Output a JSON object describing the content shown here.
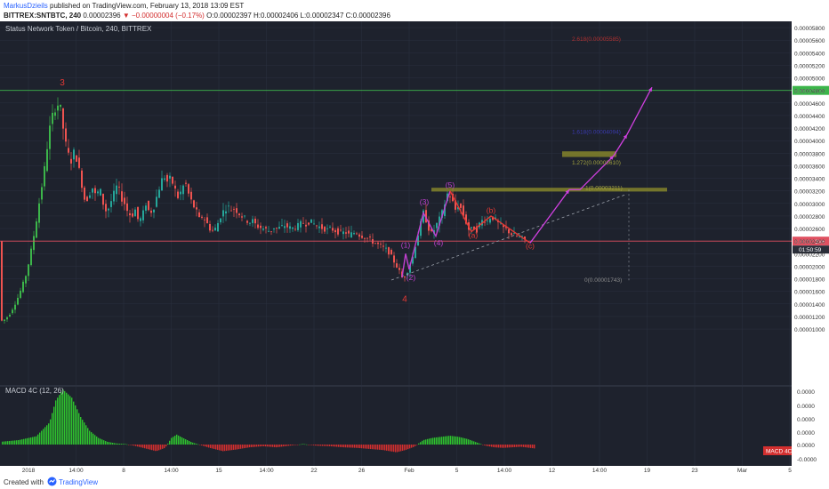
{
  "header": {
    "author": "MarkusDzieils",
    "published": "published on TradingView.com, February 13, 2018 13:09 EST",
    "symbol": "BITTREX:SNTBTC, 240",
    "price": "0.00002396",
    "change": "▼ −0.00000004 (−0.17%)",
    "ohlc": "O:0.00002397 H:0.00002406 L:0.00002347 C:0.00002396"
  },
  "footer": {
    "created": "Created with",
    "brand": "TradingView"
  },
  "colors": {
    "background": "#1e222d",
    "grid": "#2b3140",
    "up": "#26a69a",
    "down": "#ef5350",
    "up_bright": "#3cb54a",
    "wave": "#c040d0",
    "abc": "#e53935",
    "projection": "#d040e0",
    "zone": "#8a8a2a",
    "resistance_line": "#3cb54a",
    "price_line": "#e05060",
    "macd_up": "#2ec22e",
    "macd_down": "#d32f2f"
  },
  "chart_data": {
    "type": "candlestick",
    "title": "Status Network Token / Bitcoin, 240, BITTREX",
    "ylim": [
      9.5e-07,
      5.9e-05
    ],
    "y_ticks": [
      "0.00005800",
      "0.00005600",
      "0.00005400",
      "0.00005200",
      "0.00005000",
      "0.00004800",
      "0.00004600",
      "0.00004400",
      "0.00004200",
      "0.00004000",
      "0.00003800",
      "0.00003600",
      "0.00003400",
      "0.00003200",
      "0.00003000",
      "0.00002800",
      "0.00002600",
      "0.00002400",
      "0.00002200",
      "0.00002000",
      "0.00001800",
      "0.00001600",
      "0.00001400",
      "0.00001200",
      "0.00001000"
    ],
    "x_ticks": [
      "2018",
      "14:00",
      "8",
      "14:00",
      "15",
      "14:00",
      "22",
      "26",
      "Feb",
      "5",
      "14:00",
      "12",
      "14:00",
      "19",
      "23",
      "Mar",
      "5"
    ],
    "price_path": [
      [
        0,
        1.12e-05
      ],
      [
        5,
        1.15e-05
      ],
      [
        10,
        1.22e-05
      ],
      [
        15,
        1.35e-05
      ],
      [
        20,
        1.5e-05
      ],
      [
        25,
        1.68e-05
      ],
      [
        30,
        1.9e-05
      ],
      [
        35,
        2.25e-05
      ],
      [
        40,
        2.65e-05
      ],
      [
        45,
        3.1e-05
      ],
      [
        50,
        3.55e-05
      ],
      [
        53,
        3.9e-05
      ],
      [
        56,
        4.2e-05
      ],
      [
        60,
        4.45e-05
      ],
      [
        64,
        4.6e-05
      ],
      [
        68,
        4.5e-05
      ],
      [
        70,
        4.3e-05
      ],
      [
        73,
        4e-05
      ],
      [
        76,
        3.8e-05
      ],
      [
        80,
        3.68e-05
      ],
      [
        84,
        3.85e-05
      ],
      [
        88,
        3.6e-05
      ],
      [
        92,
        3.3e-05
      ],
      [
        96,
        3e-05
      ],
      [
        100,
        3.15e-05
      ],
      [
        104,
        3.25e-05
      ],
      [
        108,
        3.1e-05
      ],
      [
        112,
        3.25e-05
      ],
      [
        116,
        3e-05
      ],
      [
        120,
        2.85e-05
      ],
      [
        124,
        3e-05
      ],
      [
        128,
        3.15e-05
      ],
      [
        132,
        3.3e-05
      ],
      [
        136,
        3.1e-05
      ],
      [
        140,
        3e-05
      ],
      [
        144,
        2.85e-05
      ],
      [
        148,
        2.8e-05
      ],
      [
        152,
        2.9e-05
      ],
      [
        156,
        2.7e-05
      ],
      [
        160,
        2.8e-05
      ],
      [
        164,
        3e-05
      ],
      [
        168,
        2.85e-05
      ],
      [
        172,
        2.9e-05
      ],
      [
        176,
        3.1e-05
      ],
      [
        180,
        3.3e-05
      ],
      [
        184,
        3.45e-05
      ],
      [
        188,
        3.35e-05
      ],
      [
        192,
        3.4e-05
      ],
      [
        196,
        3.25e-05
      ],
      [
        200,
        3.1e-05
      ],
      [
        204,
        3.2e-05
      ],
      [
        208,
        3.35e-05
      ],
      [
        212,
        3.15e-05
      ],
      [
        216,
        3e-05
      ],
      [
        220,
        2.9e-05
      ],
      [
        224,
        2.75e-05
      ],
      [
        228,
        2.8e-05
      ],
      [
        232,
        2.7e-05
      ],
      [
        236,
        2.6e-05
      ],
      [
        240,
        2.55e-05
      ],
      [
        244,
        2.65e-05
      ],
      [
        248,
        2.8e-05
      ],
      [
        252,
        2.9e-05
      ],
      [
        256,
        2.95e-05
      ],
      [
        260,
        2.9e-05
      ],
      [
        264,
        2.92e-05
      ],
      [
        268,
        2.85e-05
      ],
      [
        272,
        2.8e-05
      ],
      [
        276,
        2.75e-05
      ],
      [
        280,
        2.7e-05
      ],
      [
        284,
        2.72e-05
      ],
      [
        288,
        2.65e-05
      ],
      [
        292,
        2.62e-05
      ],
      [
        296,
        2.6e-05
      ],
      [
        300,
        2.58e-05
      ],
      [
        304,
        2.55e-05
      ],
      [
        308,
        2.62e-05
      ],
      [
        312,
        2.6e-05
      ],
      [
        316,
        2.62e-05
      ],
      [
        320,
        2.65e-05
      ],
      [
        324,
        2.62e-05
      ],
      [
        328,
        2.6e-05
      ],
      [
        332,
        2.62e-05
      ],
      [
        336,
        2.65e-05
      ],
      [
        340,
        2.7e-05
      ],
      [
        344,
        2.68e-05
      ],
      [
        348,
        2.72e-05
      ],
      [
        352,
        2.68e-05
      ],
      [
        356,
        2.65e-05
      ],
      [
        360,
        2.62e-05
      ],
      [
        364,
        2.6e-05
      ],
      [
        368,
        2.58e-05
      ],
      [
        372,
        2.6e-05
      ],
      [
        376,
        2.57e-05
      ],
      [
        380,
        2.55e-05
      ],
      [
        384,
        2.52e-05
      ],
      [
        388,
        2.55e-05
      ],
      [
        392,
        2.5e-05
      ],
      [
        396,
        2.52e-05
      ],
      [
        400,
        2.55e-05
      ],
      [
        404,
        2.5e-05
      ],
      [
        408,
        2.48e-05
      ],
      [
        412,
        2.45e-05
      ],
      [
        416,
        2.42e-05
      ],
      [
        420,
        2.38e-05
      ],
      [
        424,
        2.35e-05
      ],
      [
        428,
        2.32e-05
      ],
      [
        432,
        2.28e-05
      ],
      [
        436,
        2.25e-05
      ],
      [
        440,
        2.15e-05
      ],
      [
        444,
        2.05e-05
      ],
      [
        448,
        1.95e-05
      ],
      [
        452,
        1.82e-05
      ],
      [
        456,
        1.85e-05
      ],
      [
        460,
        2e-05
      ],
      [
        464,
        2.15e-05
      ],
      [
        468,
        2.4e-05
      ],
      [
        472,
        2.62e-05
      ],
      [
        476,
        2.85e-05
      ],
      [
        480,
        2.7e-05
      ],
      [
        484,
        2.5e-05
      ],
      [
        488,
        2.58e-05
      ],
      [
        492,
        2.7e-05
      ],
      [
        496,
        2.8e-05
      ],
      [
        500,
        3e-05
      ],
      [
        504,
        3.2e-05
      ],
      [
        508,
        3.05e-05
      ],
      [
        512,
        2.9e-05
      ],
      [
        516,
        3e-05
      ],
      [
        520,
        2.85e-05
      ],
      [
        524,
        2.7e-05
      ],
      [
        528,
        2.55e-05
      ],
      [
        532,
        2.62e-05
      ],
      [
        536,
        2.58e-05
      ],
      [
        540,
        2.7e-05
      ],
      [
        544,
        2.75e-05
      ],
      [
        548,
        2.72e-05
      ],
      [
        552,
        2.8e-05
      ],
      [
        556,
        2.75e-05
      ],
      [
        560,
        2.68e-05
      ],
      [
        564,
        2.62e-05
      ],
      [
        568,
        2.6e-05
      ],
      [
        572,
        2.55e-05
      ],
      [
        576,
        2.5e-05
      ],
      [
        580,
        2.48e-05
      ],
      [
        584,
        2.46e-05
      ],
      [
        588,
        2.44e-05
      ],
      [
        592,
        2.4e-05
      ]
    ],
    "wave_count": {
      "labels": [
        {
          "text": "3",
          "color": "#e53935",
          "x": 70,
          "y": 4.88e-05
        },
        {
          "text": "4",
          "color": "#e53935",
          "x": 455,
          "y": 1.43e-05
        },
        {
          "text": "(1)",
          "color": "#c040d0",
          "x": 456,
          "y": 2.3e-05
        },
        {
          "text": "(2)",
          "color": "#c040d0",
          "x": 462,
          "y": 1.78e-05
        },
        {
          "text": "(3)",
          "color": "#c040d0",
          "x": 477,
          "y": 2.98e-05
        },
        {
          "text": "(4)",
          "color": "#c040d0",
          "x": 493,
          "y": 2.33e-05
        },
        {
          "text": "(5)",
          "color": "#c040d0",
          "x": 506,
          "y": 3.25e-05
        },
        {
          "text": "(a)",
          "color": "#e53935",
          "x": 532,
          "y": 2.45e-05
        },
        {
          "text": "(b)",
          "color": "#e53935",
          "x": 552,
          "y": 2.85e-05
        },
        {
          "text": "(c)",
          "color": "#e53935",
          "x": 596,
          "y": 2.28e-05
        }
      ],
      "impulse": [
        [
          452,
          1.82e-05
        ],
        [
          456,
          2.2e-05
        ],
        [
          460,
          1.95e-05
        ],
        [
          476,
          2.85e-05
        ],
        [
          490,
          2.48e-05
        ],
        [
          506,
          3.2e-05
        ]
      ],
      "correction": [
        [
          506,
          3.2e-05
        ],
        [
          530,
          2.55e-05
        ],
        [
          552,
          2.8e-05
        ],
        [
          596,
          2.37e-05
        ]
      ],
      "projection": [
        [
          596,
          2.37e-05
        ],
        [
          640,
          3.22e-05
        ],
        [
          652,
          3.22e-05
        ],
        [
          690,
          3.76e-05
        ],
        [
          705,
          4.1e-05
        ],
        [
          733,
          4.85e-05
        ]
      ],
      "trendline": [
        [
          440,
          1.78e-05
        ],
        [
          705,
          3.15e-05
        ]
      ]
    },
    "fibonacci": [
      {
        "label": "2.618(0.00005585)",
        "x": 643,
        "y": 5.59e-05,
        "color": "#b03030"
      },
      {
        "label": "1.618(0.00004094)",
        "x": 643,
        "y": 4.11e-05,
        "color": "#3a3ab0"
      },
      {
        "label": "1.272(0.00003610)",
        "x": 643,
        "y": 3.62e-05,
        "color": "#a0a040"
      },
      {
        "label": "1(0.00003211)",
        "x": 658,
        "y": 3.22e-05,
        "color": "#a0a040"
      },
      {
        "label": "0(0.00001743)",
        "x": 657,
        "y": 1.75e-05,
        "color": "#888888"
      }
    ],
    "zones": [
      {
        "x0": 485,
        "x1": 750,
        "y0": 3.19e-05,
        "y1": 3.25e-05
      },
      {
        "x0": 632,
        "x1": 693,
        "y0": 3.74e-05,
        "y1": 3.83e-05
      }
    ],
    "levels": [
      {
        "price": 4.8e-05,
        "label": "0.00004800",
        "color": "#3cb54a"
      },
      {
        "price": 2.4e-05,
        "label": "0.00002396",
        "color": "#e05060"
      }
    ],
    "countdown": "01:50:59",
    "macd": {
      "title": "MACD 4C (12, 26)",
      "badge": "MACD 4C",
      "y_ticks": [
        "0.0000",
        "0.0000",
        "0.0000",
        "0.0000",
        "0.0000",
        "-0.0000"
      ],
      "bars_x": [
        5,
        170,
        420,
        500,
        590
      ],
      "bars": [
        [
          0,
          0.05
        ],
        [
          20,
          0.08
        ],
        [
          40,
          0.15
        ],
        [
          55,
          0.4
        ],
        [
          62,
          0.8
        ],
        [
          70,
          1.0
        ],
        [
          80,
          0.85
        ],
        [
          90,
          0.5
        ],
        [
          100,
          0.25
        ],
        [
          110,
          0.12
        ],
        [
          120,
          0.05
        ],
        [
          130,
          0.02
        ],
        [
          140,
          0.01
        ],
        [
          150,
          -0.02
        ],
        [
          165,
          -0.08
        ],
        [
          175,
          -0.12
        ],
        [
          185,
          -0.06
        ],
        [
          192,
          0.12
        ],
        [
          198,
          0.18
        ],
        [
          205,
          0.12
        ],
        [
          215,
          0.04
        ],
        [
          225,
          -0.01
        ],
        [
          235,
          -0.06
        ],
        [
          250,
          -0.12
        ],
        [
          265,
          -0.09
        ],
        [
          280,
          -0.05
        ],
        [
          295,
          -0.03
        ],
        [
          310,
          -0.05
        ],
        [
          325,
          -0.02
        ],
        [
          340,
          0.01
        ],
        [
          355,
          -0.02
        ],
        [
          370,
          -0.03
        ],
        [
          385,
          -0.05
        ],
        [
          400,
          -0.06
        ],
        [
          415,
          -0.08
        ],
        [
          430,
          -0.1
        ],
        [
          445,
          -0.14
        ],
        [
          455,
          -0.1
        ],
        [
          465,
          -0.04
        ],
        [
          475,
          0.08
        ],
        [
          485,
          0.12
        ],
        [
          495,
          0.14
        ],
        [
          505,
          0.16
        ],
        [
          515,
          0.14
        ],
        [
          525,
          0.1
        ],
        [
          535,
          0.04
        ],
        [
          545,
          -0.02
        ],
        [
          555,
          -0.05
        ],
        [
          565,
          -0.06
        ],
        [
          575,
          -0.05
        ],
        [
          585,
          -0.04
        ],
        [
          595,
          -0.06
        ],
        [
          600,
          -0.07
        ]
      ]
    }
  }
}
